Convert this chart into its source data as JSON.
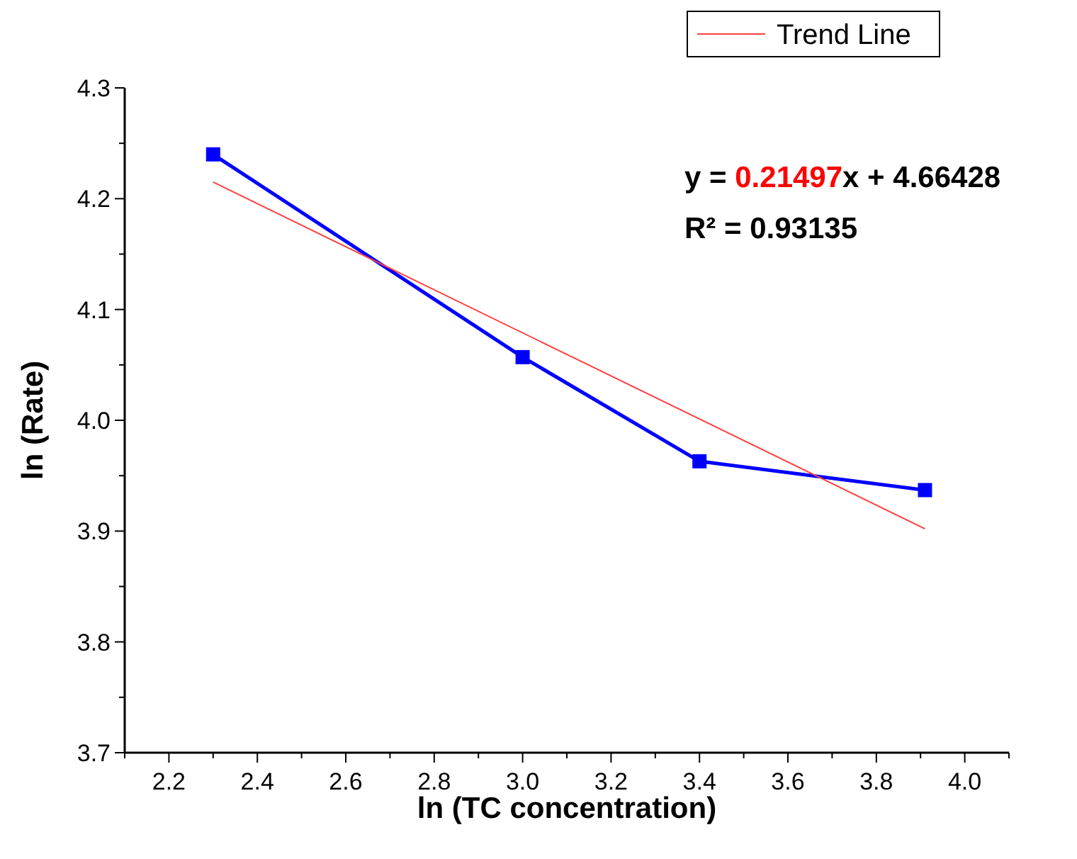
{
  "chart_data": {
    "type": "line",
    "xlabel": "ln (TC concentration)",
    "ylabel": "ln (Rate)",
    "series": [
      {
        "color": "#0000ff",
        "x": [
          2.3,
          3.0,
          3.4,
          3.91
        ],
        "values": [
          4.24,
          4.057,
          3.963,
          3.937
        ],
        "marker": "square"
      },
      {
        "name": "Trend Line",
        "color": "#ff4040",
        "x": [
          2.3,
          3.91
        ],
        "values": [
          4.215,
          3.902
        ],
        "marker": "none"
      }
    ],
    "xlim": [
      2.1,
      4.1
    ],
    "xticks": [
      {
        "value": 2.1,
        "label": null
      },
      2.2,
      {
        "value": 2.3,
        "label": null
      },
      2.4,
      {
        "value": 2.5,
        "label": null
      },
      2.6,
      {
        "value": 2.7,
        "label": null
      },
      2.8,
      {
        "value": 2.9,
        "label": null
      },
      {
        "value": 3.0,
        "label": "3.0"
      },
      {
        "value": 3.1,
        "label": null
      },
      3.2,
      {
        "value": 3.3,
        "label": null
      },
      3.4,
      {
        "value": 3.5,
        "label": null
      },
      3.6,
      {
        "value": 3.7,
        "label": null
      },
      3.8,
      {
        "value": 3.9,
        "label": null
      },
      {
        "value": 4.0,
        "label": "4.0"
      },
      {
        "value": 4.1,
        "label": null
      }
    ],
    "ylim": [
      3.7,
      4.3
    ],
    "yticks": [
      3.7,
      {
        "value": 3.75,
        "label": null
      },
      3.8,
      {
        "value": 3.85,
        "label": null
      },
      3.9,
      {
        "value": 3.95,
        "label": null
      },
      {
        "value": 4.0,
        "label": "4.0"
      },
      {
        "value": 4.05,
        "label": null
      },
      4.1,
      {
        "value": 4.15,
        "label": null
      },
      4.2,
      {
        "value": 4.25,
        "label": null
      },
      4.3
    ],
    "annotations": [
      "y = 0.21497x + 4.66428",
      "R² = 0.93135"
    ],
    "legend": "top right",
    "grid": false
  }
}
